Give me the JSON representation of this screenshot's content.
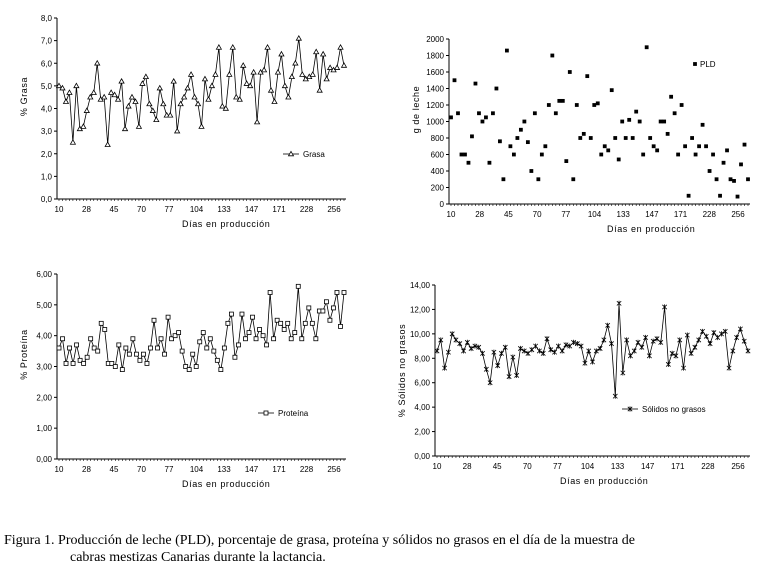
{
  "caption": {
    "line1": "Figura 1. Producción de leche (PLD), porcentaje de grasa, proteína y sólidos no grasos en el día de la muestra de",
    "line2": "cabras mestizas Canarias durante la lactancia."
  },
  "chart_data": [
    {
      "id": "grasa",
      "type": "line",
      "marker": "triangle",
      "ylabel": "% Grasa",
      "xlabel": "Días en producción",
      "ylim": [
        0,
        8
      ],
      "ytick_labels": [
        "0,0",
        "1,0",
        "2,0",
        "3,0",
        "4,0",
        "5,0",
        "6,0",
        "7,0",
        "8,0"
      ],
      "xtick_labels": [
        "10",
        "28",
        "45",
        "70",
        "77",
        "104",
        "133",
        "147",
        "171",
        "228",
        "256"
      ],
      "grid": false,
      "legend_position": "center-right",
      "series": [
        {
          "name": "Grasa",
          "values": [
            5.0,
            4.9,
            4.3,
            4.7,
            2.5,
            5.0,
            3.1,
            3.2,
            3.9,
            4.5,
            4.7,
            6.0,
            4.4,
            4.5,
            2.4,
            4.7,
            4.6,
            4.4,
            5.2,
            3.1,
            4.1,
            4.5,
            4.3,
            3.2,
            5.1,
            5.4,
            4.2,
            3.9,
            3.5,
            4.9,
            4.2,
            3.7,
            3.7,
            5.2,
            3.0,
            4.2,
            4.5,
            4.9,
            5.5,
            4.5,
            4.2,
            3.2,
            5.3,
            4.4,
            5.0,
            5.5,
            6.7,
            4.1,
            4.0,
            5.5,
            6.7,
            4.5,
            4.4,
            5.9,
            5.1,
            5.0,
            5.6,
            3.4,
            5.6,
            5.7,
            6.7,
            4.8,
            4.3,
            5.6,
            6.4,
            5.0,
            4.5,
            5.4,
            6.0,
            7.1,
            5.5,
            5.3,
            5.4,
            5.5,
            6.5,
            4.8,
            6.4,
            5.3,
            5.8,
            5.7,
            5.8,
            6.7,
            5.9
          ]
        }
      ]
    },
    {
      "id": "pld",
      "type": "scatter",
      "marker": "square",
      "ylabel": "g de leche",
      "xlabel": "Días en producción",
      "ylim": [
        0,
        2000
      ],
      "ytick_labels": [
        "0",
        "200",
        "400",
        "600",
        "800",
        "1000",
        "1200",
        "1400",
        "1600",
        "1800",
        "2000"
      ],
      "xtick_labels": [
        "10",
        "28",
        "45",
        "70",
        "77",
        "104",
        "133",
        "147",
        "171",
        "228",
        "256"
      ],
      "grid": false,
      "legend_position": "top-right",
      "series": [
        {
          "name": "PLD",
          "values": [
            1050,
            1500,
            1100,
            600,
            600,
            500,
            820,
            1460,
            1100,
            1000,
            1050,
            500,
            1100,
            1400,
            760,
            300,
            1860,
            700,
            600,
            800,
            900,
            1000,
            750,
            400,
            1100,
            300,
            600,
            700,
            1200,
            1800,
            1100,
            1250,
            1250,
            520,
            1600,
            300,
            1200,
            800,
            850,
            1550,
            800,
            1200,
            1220,
            600,
            700,
            650,
            1380,
            800,
            540,
            1000,
            800,
            1020,
            800,
            1120,
            1000,
            600,
            1900,
            800,
            700,
            650,
            1000,
            1000,
            850,
            1300,
            1100,
            600,
            1200,
            700,
            100,
            800,
            600,
            700,
            960,
            700,
            400,
            600,
            300,
            100,
            500,
            650,
            300,
            280,
            90,
            480,
            720,
            300
          ]
        }
      ]
    },
    {
      "id": "proteina",
      "type": "line",
      "marker": "square",
      "ylabel": "% Proteína",
      "xlabel": "Días en producción",
      "ylim": [
        0,
        6
      ],
      "ytick_labels": [
        "0,00",
        "1,00",
        "2,00",
        "3,00",
        "4,00",
        "5,00",
        "6,00"
      ],
      "xtick_labels": [
        "10",
        "28",
        "45",
        "70",
        "77",
        "104",
        "133",
        "147",
        "171",
        "228",
        "256"
      ],
      "grid": false,
      "legend_position": "bottom-center",
      "series": [
        {
          "name": "Proteína",
          "values": [
            3.6,
            3.9,
            3.1,
            3.6,
            3.1,
            3.7,
            3.2,
            3.1,
            3.3,
            3.9,
            3.6,
            3.5,
            4.4,
            4.2,
            3.1,
            3.1,
            3.0,
            3.7,
            2.9,
            3.6,
            3.4,
            3.9,
            3.4,
            3.2,
            3.4,
            3.1,
            3.6,
            4.5,
            3.6,
            3.9,
            3.4,
            4.6,
            3.9,
            4.0,
            4.1,
            3.5,
            3.0,
            2.9,
            3.4,
            3.0,
            3.8,
            4.1,
            3.6,
            3.9,
            3.5,
            3.2,
            2.9,
            3.6,
            4.4,
            4.7,
            3.3,
            3.7,
            4.7,
            3.9,
            4.1,
            4.6,
            3.9,
            4.2,
            4.0,
            3.7,
            5.4,
            3.9,
            4.5,
            4.4,
            4.2,
            4.4,
            3.9,
            4.1,
            5.6,
            3.9,
            4.4,
            4.9,
            4.4,
            3.9,
            4.8,
            4.8,
            5.1,
            4.5,
            4.9,
            5.4,
            4.3,
            5.4
          ]
        }
      ]
    },
    {
      "id": "solidos",
      "type": "line",
      "marker": "star",
      "ylabel": "% Sólidos no grasos",
      "xlabel": "Días en producción",
      "ylim": [
        0,
        14
      ],
      "ytick_labels": [
        "0,00",
        "2,00",
        "4,00",
        "6,00",
        "8,00",
        "10,00",
        "12,00",
        "14,00"
      ],
      "xtick_labels": [
        "10",
        "28",
        "45",
        "70",
        "77",
        "104",
        "133",
        "147",
        "171",
        "228",
        "256"
      ],
      "grid": false,
      "legend_position": "bottom-right",
      "series": [
        {
          "name": "Sólidos no grasos",
          "values": [
            8.6,
            9.5,
            7.2,
            8.5,
            10.0,
            9.5,
            9.2,
            8.6,
            9.3,
            8.8,
            9.0,
            8.9,
            8.4,
            7.1,
            6.0,
            8.5,
            7.4,
            8.4,
            8.9,
            6.5,
            8.1,
            6.6,
            8.8,
            8.6,
            8.4,
            8.7,
            9.0,
            8.6,
            8.4,
            9.6,
            8.7,
            8.5,
            9.0,
            8.6,
            9.1,
            9.0,
            9.3,
            9.2,
            9.0,
            7.6,
            8.6,
            7.7,
            8.6,
            8.8,
            9.5,
            10.7,
            9.2,
            4.9,
            12.5,
            6.8,
            9.5,
            8.2,
            8.6,
            9.3,
            8.9,
            9.7,
            8.2,
            9.4,
            9.6,
            9.3,
            12.2,
            7.5,
            8.4,
            8.2,
            9.5,
            7.2,
            9.9,
            8.4,
            8.9,
            9.5,
            10.2,
            9.8,
            9.2,
            10.1,
            9.7,
            10.0,
            10.2,
            7.2,
            8.6,
            9.7,
            10.4,
            9.4,
            8.6
          ]
        }
      ]
    }
  ]
}
